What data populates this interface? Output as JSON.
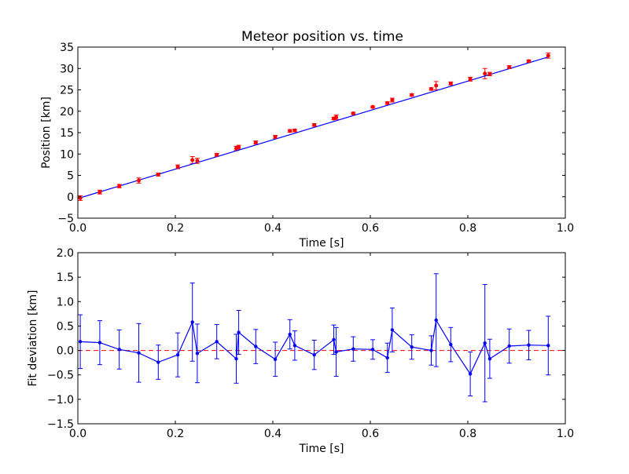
{
  "colors": {
    "fit_line": "#0000ff",
    "data_points": "#ff0000",
    "error_bars_top": "#ff0000",
    "residual_line": "#0000ff",
    "zero_line": "#ff0000",
    "axes": "#000000",
    "background": "#ffffff"
  },
  "chart_data": [
    {
      "type": "scatter",
      "title": "Meteor position vs. time",
      "xlabel": "Time [s]",
      "ylabel": "Position [km]",
      "xlim": [
        0.0,
        1.0
      ],
      "ylim": [
        -5,
        35
      ],
      "xticks": [
        "0.0",
        "0.2",
        "0.4",
        "0.6",
        "0.8",
        "1.0"
      ],
      "yticks": [
        "−5",
        "0",
        "5",
        "10",
        "15",
        "20",
        "25",
        "30",
        "35"
      ],
      "grid": false,
      "fit_line": {
        "x": [
          0.0,
          0.965
        ],
        "y": [
          -0.4,
          32.7
        ]
      },
      "series": [
        {
          "x": [
            0.005,
            0.045,
            0.085,
            0.125,
            0.165,
            0.205,
            0.235,
            0.245,
            0.285,
            0.325,
            0.33,
            0.365,
            0.405,
            0.435,
            0.445,
            0.485,
            0.525,
            0.53,
            0.565,
            0.605,
            0.635,
            0.645,
            0.685,
            0.725,
            0.735,
            0.765,
            0.805,
            0.835,
            0.845,
            0.885,
            0.925,
            0.965
          ],
          "y": [
            -0.3,
            1.1,
            2.5,
            3.8,
            5.2,
            7.0,
            8.6,
            8.4,
            9.8,
            11.3,
            11.6,
            12.7,
            14.0,
            15.4,
            15.5,
            16.8,
            18.3,
            18.6,
            19.5,
            21.0,
            21.9,
            22.6,
            23.8,
            25.2,
            26.0,
            26.5,
            27.5,
            28.8,
            28.7,
            30.3,
            31.7,
            33.0
          ],
          "err": [
            0.55,
            0.45,
            0.4,
            0.6,
            0.35,
            0.45,
            0.8,
            0.6,
            0.35,
            0.5,
            0.45,
            0.35,
            0.35,
            0.3,
            0.3,
            0.3,
            0.3,
            0.5,
            0.25,
            0.2,
            0.3,
            0.45,
            0.25,
            0.3,
            0.95,
            0.35,
            0.45,
            1.2,
            0.4,
            0.35,
            0.3,
            0.6
          ]
        }
      ]
    },
    {
      "type": "line",
      "xlabel": "Time [s]",
      "ylabel": "Fit deviation [km]",
      "xlim": [
        0.0,
        1.0
      ],
      "ylim": [
        -1.5,
        2.0
      ],
      "xticks": [
        "0.0",
        "0.2",
        "0.4",
        "0.6",
        "0.8",
        "1.0"
      ],
      "yticks": [
        "−1.5",
        "−1.0",
        "−0.5",
        "0.0",
        "0.5",
        "1.0",
        "1.5",
        "2.0"
      ],
      "grid": false,
      "zero_line": true,
      "series": [
        {
          "x": [
            0.005,
            0.045,
            0.085,
            0.125,
            0.165,
            0.205,
            0.235,
            0.245,
            0.285,
            0.325,
            0.33,
            0.365,
            0.405,
            0.435,
            0.445,
            0.485,
            0.525,
            0.53,
            0.565,
            0.605,
            0.635,
            0.645,
            0.685,
            0.725,
            0.735,
            0.765,
            0.805,
            0.835,
            0.845,
            0.885,
            0.925,
            0.965
          ],
          "y": [
            0.18,
            0.16,
            0.02,
            -0.05,
            -0.24,
            -0.09,
            0.58,
            -0.06,
            0.18,
            -0.17,
            0.37,
            0.08,
            -0.18,
            0.33,
            0.1,
            -0.09,
            0.22,
            -0.03,
            0.03,
            0.02,
            -0.15,
            0.42,
            0.07,
            0.0,
            0.62,
            0.12,
            -0.48,
            0.15,
            -0.17,
            0.09,
            0.11,
            0.1
          ],
          "err": [
            0.55,
            0.45,
            0.4,
            0.6,
            0.35,
            0.45,
            0.8,
            0.6,
            0.35,
            0.5,
            0.45,
            0.35,
            0.35,
            0.3,
            0.3,
            0.3,
            0.3,
            0.5,
            0.25,
            0.2,
            0.3,
            0.45,
            0.25,
            0.3,
            0.95,
            0.35,
            0.45,
            1.2,
            0.4,
            0.35,
            0.3,
            0.6
          ]
        }
      ]
    }
  ]
}
